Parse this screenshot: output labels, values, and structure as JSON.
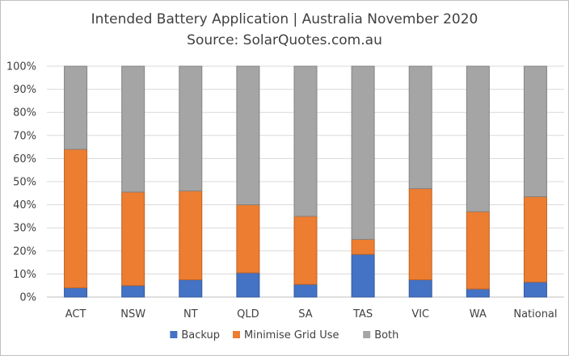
{
  "chart_data": {
    "type": "bar",
    "stacked": true,
    "title": "Intended Battery Application | Australia November 2020",
    "subtitle": "Source: SolarQuotes.com.au",
    "xlabel": "",
    "ylabel": "",
    "ylim": [
      0,
      100
    ],
    "y_tick_labels": [
      "0%",
      "10%",
      "20%",
      "30%",
      "40%",
      "50%",
      "60%",
      "70%",
      "80%",
      "90%",
      "100%"
    ],
    "categories": [
      "ACT",
      "NSW",
      "NT",
      "QLD",
      "SA",
      "TAS",
      "VIC",
      "WA",
      "National"
    ],
    "series": [
      {
        "name": "Backup",
        "color": "#4472C4",
        "values": [
          4,
          5,
          7.5,
          10.5,
          5.5,
          18.5,
          7.5,
          3.5,
          6.5
        ]
      },
      {
        "name": "Minimise Grid Use",
        "color": "#ED7D31",
        "values": [
          60,
          40.5,
          38.5,
          29.5,
          29.5,
          6.5,
          39.5,
          33.5,
          37
        ]
      },
      {
        "name": "Both",
        "color": "#A5A5A5",
        "values": [
          36,
          54.5,
          54,
          60,
          65,
          75,
          53,
          63,
          56.5
        ]
      }
    ],
    "grid": true,
    "legend": "bottom"
  }
}
